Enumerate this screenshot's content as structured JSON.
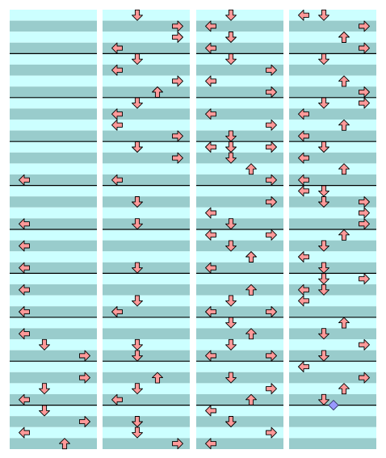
{
  "colors": {
    "stripe_light": "#ccffff",
    "stripe_dark": "#99cccc",
    "measure_line": "#000000",
    "arrow_fill": "#ff9999",
    "arrow_stroke": "#000000",
    "mine_fill": "#9999ff",
    "background": "#ffffff"
  },
  "chart_data": {
    "type": "step-chart",
    "lanes": [
      "left",
      "down",
      "up",
      "right"
    ],
    "columns_count": 4,
    "rows_per_column": 40,
    "measure_every_rows": 4,
    "notes": [
      {
        "col": 0,
        "row": 15,
        "dir": "left"
      },
      {
        "col": 0,
        "row": 19,
        "dir": "left"
      },
      {
        "col": 0,
        "row": 21,
        "dir": "left"
      },
      {
        "col": 0,
        "row": 23,
        "dir": "left"
      },
      {
        "col": 0,
        "row": 25,
        "dir": "left"
      },
      {
        "col": 0,
        "row": 27,
        "dir": "left"
      },
      {
        "col": 0,
        "row": 29,
        "dir": "left"
      },
      {
        "col": 0,
        "row": 30,
        "dir": "down"
      },
      {
        "col": 0,
        "row": 31,
        "dir": "right"
      },
      {
        "col": 0,
        "row": 33,
        "dir": "right"
      },
      {
        "col": 0,
        "row": 34,
        "dir": "down"
      },
      {
        "col": 0,
        "row": 35,
        "dir": "left"
      },
      {
        "col": 0,
        "row": 36,
        "dir": "down"
      },
      {
        "col": 0,
        "row": 37,
        "dir": "right"
      },
      {
        "col": 0,
        "row": 38,
        "dir": "left"
      },
      {
        "col": 0,
        "row": 39,
        "dir": "up"
      },
      {
        "col": 1,
        "row": 0,
        "dir": "down"
      },
      {
        "col": 1,
        "row": 1,
        "dir": "right"
      },
      {
        "col": 1,
        "row": 2,
        "dir": "right"
      },
      {
        "col": 1,
        "row": 3,
        "dir": "left"
      },
      {
        "col": 1,
        "row": 4,
        "dir": "down"
      },
      {
        "col": 1,
        "row": 5,
        "dir": "left"
      },
      {
        "col": 1,
        "row": 6,
        "dir": "right"
      },
      {
        "col": 1,
        "row": 7,
        "dir": "up"
      },
      {
        "col": 1,
        "row": 8,
        "dir": "down"
      },
      {
        "col": 1,
        "row": 9,
        "dir": "left"
      },
      {
        "col": 1,
        "row": 10,
        "dir": "left"
      },
      {
        "col": 1,
        "row": 11,
        "dir": "right"
      },
      {
        "col": 1,
        "row": 12,
        "dir": "down"
      },
      {
        "col": 1,
        "row": 13,
        "dir": "right"
      },
      {
        "col": 1,
        "row": 15,
        "dir": "left"
      },
      {
        "col": 1,
        "row": 17,
        "dir": "down"
      },
      {
        "col": 1,
        "row": 19,
        "dir": "down"
      },
      {
        "col": 1,
        "row": 23,
        "dir": "down"
      },
      {
        "col": 1,
        "row": 26,
        "dir": "down"
      },
      {
        "col": 1,
        "row": 27,
        "dir": "left"
      },
      {
        "col": 1,
        "row": 30,
        "dir": "down"
      },
      {
        "col": 1,
        "row": 31,
        "dir": "down"
      },
      {
        "col": 1,
        "row": 33,
        "dir": "up"
      },
      {
        "col": 1,
        "row": 34,
        "dir": "down"
      },
      {
        "col": 1,
        "row": 35,
        "dir": "left"
      },
      {
        "col": 1,
        "row": 37,
        "dir": "down"
      },
      {
        "col": 1,
        "row": 38,
        "dir": "down"
      },
      {
        "col": 1,
        "row": 39,
        "dir": "right"
      },
      {
        "col": 2,
        "row": 0,
        "dir": "down"
      },
      {
        "col": 2,
        "row": 1,
        "dir": "left"
      },
      {
        "col": 2,
        "row": 2,
        "dir": "down"
      },
      {
        "col": 2,
        "row": 3,
        "dir": "left"
      },
      {
        "col": 2,
        "row": 4,
        "dir": "down"
      },
      {
        "col": 2,
        "row": 5,
        "dir": "right"
      },
      {
        "col": 2,
        "row": 6,
        "dir": "left"
      },
      {
        "col": 2,
        "row": 7,
        "dir": "right"
      },
      {
        "col": 2,
        "row": 9,
        "dir": "left"
      },
      {
        "col": 2,
        "row": 10,
        "dir": "right"
      },
      {
        "col": 2,
        "row": 11,
        "dir": "down"
      },
      {
        "col": 2,
        "row": 12,
        "dir": "left"
      },
      {
        "col": 2,
        "row": 12,
        "dir": "down"
      },
      {
        "col": 2,
        "row": 12,
        "dir": "right"
      },
      {
        "col": 2,
        "row": 13,
        "dir": "down"
      },
      {
        "col": 2,
        "row": 14,
        "dir": "up"
      },
      {
        "col": 2,
        "row": 15,
        "dir": "right"
      },
      {
        "col": 2,
        "row": 17,
        "dir": "right"
      },
      {
        "col": 2,
        "row": 18,
        "dir": "left"
      },
      {
        "col": 2,
        "row": 19,
        "dir": "down"
      },
      {
        "col": 2,
        "row": 20,
        "dir": "left"
      },
      {
        "col": 2,
        "row": 20,
        "dir": "right"
      },
      {
        "col": 2,
        "row": 21,
        "dir": "down"
      },
      {
        "col": 2,
        "row": 22,
        "dir": "up"
      },
      {
        "col": 2,
        "row": 23,
        "dir": "left"
      },
      {
        "col": 2,
        "row": 25,
        "dir": "up"
      },
      {
        "col": 2,
        "row": 26,
        "dir": "down"
      },
      {
        "col": 2,
        "row": 27,
        "dir": "left"
      },
      {
        "col": 2,
        "row": 27,
        "dir": "right"
      },
      {
        "col": 2,
        "row": 28,
        "dir": "down"
      },
      {
        "col": 2,
        "row": 29,
        "dir": "up"
      },
      {
        "col": 2,
        "row": 30,
        "dir": "down"
      },
      {
        "col": 2,
        "row": 31,
        "dir": "left"
      },
      {
        "col": 2,
        "row": 31,
        "dir": "right"
      },
      {
        "col": 2,
        "row": 33,
        "dir": "down"
      },
      {
        "col": 2,
        "row": 34,
        "dir": "right"
      },
      {
        "col": 2,
        "row": 35,
        "dir": "up"
      },
      {
        "col": 2,
        "row": 36,
        "dir": "left"
      },
      {
        "col": 2,
        "row": 37,
        "dir": "down"
      },
      {
        "col": 2,
        "row": 38,
        "dir": "right"
      },
      {
        "col": 2,
        "row": 39,
        "dir": "left"
      },
      {
        "col": 3,
        "row": 0,
        "dir": "down"
      },
      {
        "col": 3,
        "row": 0,
        "dir": "left"
      },
      {
        "col": 3,
        "row": 1,
        "dir": "right"
      },
      {
        "col": 3,
        "row": 2,
        "dir": "up"
      },
      {
        "col": 3,
        "row": 3,
        "dir": "right"
      },
      {
        "col": 3,
        "row": 4,
        "dir": "down"
      },
      {
        "col": 3,
        "row": 6,
        "dir": "up"
      },
      {
        "col": 3,
        "row": 7,
        "dir": "right"
      },
      {
        "col": 3,
        "row": 8,
        "dir": "right"
      },
      {
        "col": 3,
        "row": 8,
        "dir": "down"
      },
      {
        "col": 3,
        "row": 9,
        "dir": "left"
      },
      {
        "col": 3,
        "row": 10,
        "dir": "up"
      },
      {
        "col": 3,
        "row": 11,
        "dir": "left"
      },
      {
        "col": 3,
        "row": 12,
        "dir": "down"
      },
      {
        "col": 3,
        "row": 13,
        "dir": "left"
      },
      {
        "col": 3,
        "row": 14,
        "dir": "up"
      },
      {
        "col": 3,
        "row": 15,
        "dir": "left"
      },
      {
        "col": 3,
        "row": 16,
        "dir": "down"
      },
      {
        "col": 3,
        "row": 16,
        "dir": "left"
      },
      {
        "col": 3,
        "row": 17,
        "dir": "right"
      },
      {
        "col": 3,
        "row": 17,
        "dir": "down"
      },
      {
        "col": 3,
        "row": 18,
        "dir": "right"
      },
      {
        "col": 3,
        "row": 19,
        "dir": "right"
      },
      {
        "col": 3,
        "row": 20,
        "dir": "up"
      },
      {
        "col": 3,
        "row": 21,
        "dir": "down"
      },
      {
        "col": 3,
        "row": 22,
        "dir": "left"
      },
      {
        "col": 3,
        "row": 23,
        "dir": "down"
      },
      {
        "col": 3,
        "row": 24,
        "dir": "right"
      },
      {
        "col": 3,
        "row": 24,
        "dir": "down"
      },
      {
        "col": 3,
        "row": 25,
        "dir": "down"
      },
      {
        "col": 3,
        "row": 25,
        "dir": "left"
      },
      {
        "col": 3,
        "row": 26,
        "dir": "left"
      },
      {
        "col": 3,
        "row": 28,
        "dir": "up"
      },
      {
        "col": 3,
        "row": 29,
        "dir": "down"
      },
      {
        "col": 3,
        "row": 30,
        "dir": "right"
      },
      {
        "col": 3,
        "row": 31,
        "dir": "down"
      },
      {
        "col": 3,
        "row": 32,
        "dir": "left"
      },
      {
        "col": 3,
        "row": 33,
        "dir": "right"
      },
      {
        "col": 3,
        "row": 34,
        "dir": "up"
      },
      {
        "col": 3,
        "row": 35,
        "dir": "down"
      }
    ],
    "mines": [
      {
        "col": 3,
        "row": 35
      }
    ]
  }
}
